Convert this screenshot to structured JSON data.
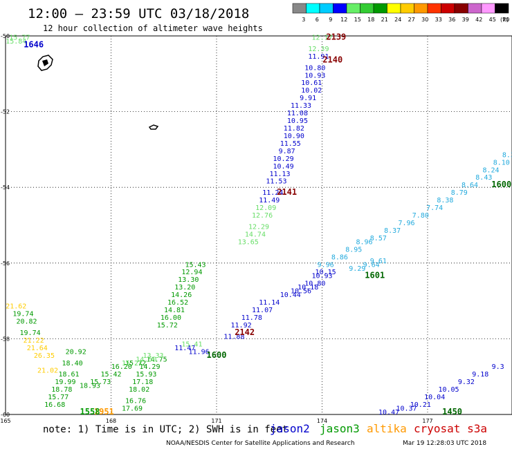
{
  "header": {
    "title": "12:00 – 23:59 UTC 03/18/2018",
    "subtitle": "12 hour collection of altimeter wave heights"
  },
  "colorbar": {
    "labels": [
      "3",
      "6",
      "9",
      "12",
      "15",
      "18",
      "21",
      "24",
      "27",
      "30",
      "33",
      "36",
      "39",
      "42",
      "45",
      "70"
    ],
    "unit": "(ft)",
    "colors": [
      "#888888",
      "#00ffff",
      "#00ccff",
      "#0000ff",
      "#66ee66",
      "#33cc33",
      "#009900",
      "#ffff00",
      "#ffcc00",
      "#ff9900",
      "#ff3300",
      "#cc0000",
      "#880000",
      "#cc66cc",
      "#ff99ff",
      "#000000"
    ]
  },
  "footer": {
    "note": "note: 1) Time is in UTC; 2) SWH is in feet",
    "satellites": [
      {
        "name": "jason2",
        "color": "#0000cc"
      },
      {
        "name": "jason3",
        "color": "#009900"
      },
      {
        "name": "altika",
        "color": "#ff9900"
      },
      {
        "name": "cryosat s3a",
        "color": "#cc0000"
      }
    ],
    "credit": "NOAA/NESDIS Center for Satellite Applications and Research",
    "timestamp": "Mar 19 12:28:03 UTC 2018"
  },
  "chart_data": {
    "type": "scatter",
    "x_unit": "longitude (deg E)",
    "y_unit": "latitude (deg)",
    "xlim": [
      165,
      179.4
    ],
    "ylim": [
      -60,
      -50
    ],
    "x_ticks": [
      {
        "v": 165,
        "label": "165"
      },
      {
        "v": 168,
        "label": "168"
      },
      {
        "v": 171,
        "label": "171"
      },
      {
        "v": 174,
        "label": "174"
      },
      {
        "v": 177,
        "label": "177"
      }
    ],
    "y_ticks": [
      {
        "v": -50,
        "label": "-50"
      },
      {
        "v": -52,
        "label": "-52"
      },
      {
        "v": -54,
        "label": "-54"
      },
      {
        "v": -56,
        "label": "-56"
      },
      {
        "v": -58,
        "label": "-58"
      },
      {
        "v": -60,
        "label": "-60"
      }
    ],
    "grid": true,
    "series": [
      {
        "name": "jason2",
        "color": "#0000cc",
        "points": [
          {
            "x": 173.9,
            "y": -50.6,
            "label": "11.91"
          },
          {
            "x": 173.8,
            "y": -50.9,
            "label": "10.80"
          },
          {
            "x": 173.8,
            "y": -51.1,
            "label": "10.93"
          },
          {
            "x": 173.7,
            "y": -51.3,
            "label": "10.61"
          },
          {
            "x": 173.7,
            "y": -51.5,
            "label": "10.02"
          },
          {
            "x": 173.6,
            "y": -51.7,
            "label": "9.91"
          },
          {
            "x": 173.4,
            "y": -51.9,
            "label": "11.33"
          },
          {
            "x": 173.3,
            "y": -52.1,
            "label": "11.08"
          },
          {
            "x": 173.3,
            "y": -52.3,
            "label": "10.95"
          },
          {
            "x": 173.2,
            "y": -52.5,
            "label": "11.82"
          },
          {
            "x": 173.2,
            "y": -52.7,
            "label": "10.90"
          },
          {
            "x": 173.1,
            "y": -52.9,
            "label": "11.55"
          },
          {
            "x": 173.0,
            "y": -53.1,
            "label": "9.87"
          },
          {
            "x": 172.9,
            "y": -53.3,
            "label": "10.29"
          },
          {
            "x": 172.9,
            "y": -53.5,
            "label": "10.49"
          },
          {
            "x": 172.8,
            "y": -53.7,
            "label": "11.13"
          },
          {
            "x": 172.7,
            "y": -53.9,
            "label": "11.53"
          },
          {
            "x": 172.6,
            "y": -54.2,
            "label": "11.24"
          },
          {
            "x": 172.5,
            "y": -54.4,
            "label": "11.49"
          },
          {
            "x": 174.1,
            "y": -56.3,
            "label": "10.15"
          },
          {
            "x": 174.0,
            "y": -56.4,
            "label": "10.93"
          },
          {
            "x": 173.8,
            "y": -56.6,
            "label": "10.80"
          },
          {
            "x": 173.6,
            "y": -56.7,
            "label": "10.18"
          },
          {
            "x": 173.4,
            "y": -56.8,
            "label": "10.56"
          },
          {
            "x": 173.1,
            "y": -56.9,
            "label": "10.44"
          },
          {
            "x": 172.5,
            "y": -57.1,
            "label": "11.14"
          },
          {
            "x": 172.3,
            "y": -57.3,
            "label": "11.07"
          },
          {
            "x": 172.0,
            "y": -57.5,
            "label": "11.78"
          },
          {
            "x": 171.7,
            "y": -57.7,
            "label": "11.92"
          },
          {
            "x": 171.5,
            "y": -58.0,
            "label": "11.88"
          },
          {
            "x": 170.1,
            "y": -58.3,
            "label": "11.47"
          },
          {
            "x": 170.5,
            "y": -58.4,
            "label": "11.96"
          },
          {
            "x": 179.0,
            "y": -58.8,
            "label": "9.3"
          },
          {
            "x": 178.5,
            "y": -59.0,
            "label": "9.18"
          },
          {
            "x": 178.1,
            "y": -59.2,
            "label": "9.32"
          },
          {
            "x": 177.6,
            "y": -59.4,
            "label": "10.05"
          },
          {
            "x": 177.2,
            "y": -59.6,
            "label": "10.04"
          },
          {
            "x": 176.8,
            "y": -59.8,
            "label": "10.21"
          },
          {
            "x": 176.4,
            "y": -59.9,
            "label": "10.37"
          },
          {
            "x": 175.9,
            "y": -60.0,
            "label": "10.47"
          }
        ]
      },
      {
        "name": "jason2-cyan",
        "color": "#22aadd",
        "points": [
          {
            "x": 179.3,
            "y": -53.2,
            "label": "8.3"
          },
          {
            "x": 179.1,
            "y": -53.4,
            "label": "8.10"
          },
          {
            "x": 178.8,
            "y": -53.6,
            "label": "8.24"
          },
          {
            "x": 178.6,
            "y": -53.8,
            "label": "8.43"
          },
          {
            "x": 178.2,
            "y": -54.0,
            "label": "8.64"
          },
          {
            "x": 177.9,
            "y": -54.2,
            "label": "8.79"
          },
          {
            "x": 177.5,
            "y": -54.4,
            "label": "8.38"
          },
          {
            "x": 177.2,
            "y": -54.6,
            "label": "7.74"
          },
          {
            "x": 176.8,
            "y": -54.8,
            "label": "7.80"
          },
          {
            "x": 176.4,
            "y": -55.0,
            "label": "7.96"
          },
          {
            "x": 176.0,
            "y": -55.2,
            "label": "8.37"
          },
          {
            "x": 175.6,
            "y": -55.4,
            "label": "8.57"
          },
          {
            "x": 175.2,
            "y": -55.5,
            "label": "8.96"
          },
          {
            "x": 174.9,
            "y": -55.7,
            "label": "8.95"
          },
          {
            "x": 174.5,
            "y": -55.9,
            "label": "8.86"
          },
          {
            "x": 174.1,
            "y": -56.1,
            "label": "9.96"
          },
          {
            "x": 175.6,
            "y": -56.0,
            "label": "9.61"
          },
          {
            "x": 175.4,
            "y": -56.1,
            "label": "9.64"
          },
          {
            "x": 175.0,
            "y": -56.2,
            "label": "9.29"
          }
        ]
      },
      {
        "name": "jason3",
        "color": "#009900",
        "points": [
          {
            "x": 170.4,
            "y": -56.1,
            "label": "15.43"
          },
          {
            "x": 170.3,
            "y": -56.3,
            "label": "12.94"
          },
          {
            "x": 170.2,
            "y": -56.5,
            "label": "13.30"
          },
          {
            "x": 170.1,
            "y": -56.7,
            "label": "13.20"
          },
          {
            "x": 170.0,
            "y": -56.9,
            "label": "14.26"
          },
          {
            "x": 169.9,
            "y": -57.1,
            "label": "16.52"
          },
          {
            "x": 169.8,
            "y": -57.3,
            "label": "14.81"
          },
          {
            "x": 169.7,
            "y": -57.5,
            "label": "16.00"
          },
          {
            "x": 169.6,
            "y": -57.7,
            "label": "15.72"
          },
          {
            "x": 169.3,
            "y": -58.6,
            "label": "14.75"
          },
          {
            "x": 169.1,
            "y": -58.8,
            "label": "14.29"
          },
          {
            "x": 169.0,
            "y": -59.0,
            "label": "15.93"
          },
          {
            "x": 168.9,
            "y": -59.2,
            "label": "17.18"
          },
          {
            "x": 168.8,
            "y": -59.4,
            "label": "18.02"
          },
          {
            "x": 168.7,
            "y": -59.7,
            "label": "16.76"
          },
          {
            "x": 168.6,
            "y": -59.9,
            "label": "17.69"
          },
          {
            "x": 167.0,
            "y": -58.4,
            "label": "20.92"
          },
          {
            "x": 166.9,
            "y": -58.7,
            "label": "18.40"
          },
          {
            "x": 166.8,
            "y": -59.0,
            "label": "18.61"
          },
          {
            "x": 166.7,
            "y": -59.2,
            "label": "19.99"
          },
          {
            "x": 166.6,
            "y": -59.4,
            "label": "18.78"
          },
          {
            "x": 166.5,
            "y": -59.6,
            "label": "15.77"
          },
          {
            "x": 166.4,
            "y": -59.8,
            "label": "16.68"
          },
          {
            "x": 165.5,
            "y": -57.4,
            "label": "19.74"
          },
          {
            "x": 165.6,
            "y": -57.6,
            "label": "20.82"
          },
          {
            "x": 165.7,
            "y": -57.9,
            "label": "19.74"
          },
          {
            "x": 167.4,
            "y": -59.3,
            "label": "18.93"
          },
          {
            "x": 167.7,
            "y": -59.2,
            "label": "15.73"
          },
          {
            "x": 168.0,
            "y": -59.0,
            "label": "15.42"
          },
          {
            "x": 168.3,
            "y": -58.8,
            "label": "16.20"
          },
          {
            "x": 168.7,
            "y": -58.7,
            "label": "15.72"
          }
        ]
      },
      {
        "name": "jason3-light",
        "color": "#66dd66",
        "points": [
          {
            "x": 174.0,
            "y": -50.1,
            "label": "12.17"
          },
          {
            "x": 173.9,
            "y": -50.4,
            "label": "12.39"
          },
          {
            "x": 172.4,
            "y": -54.6,
            "label": "12.09"
          },
          {
            "x": 172.3,
            "y": -54.8,
            "label": "12.76"
          },
          {
            "x": 172.2,
            "y": -55.1,
            "label": "12.29"
          },
          {
            "x": 172.1,
            "y": -55.3,
            "label": "14.74"
          },
          {
            "x": 171.9,
            "y": -55.5,
            "label": "13.65"
          },
          {
            "x": 169.2,
            "y": -58.5,
            "label": "13.33"
          },
          {
            "x": 169.0,
            "y": -58.6,
            "label": "14.50"
          },
          {
            "x": 168.6,
            "y": -58.7,
            "label": "15.27"
          },
          {
            "x": 170.3,
            "y": -58.2,
            "label": "15.41"
          },
          {
            "x": 165.4,
            "y": -50.1,
            "label": "15.77"
          },
          {
            "x": 165.3,
            "y": -50.2,
            "label": "15.84"
          }
        ]
      },
      {
        "name": "altika",
        "color": "#ffcc00",
        "points": [
          {
            "x": 165.3,
            "y": -57.2,
            "label": "21.62"
          },
          {
            "x": 165.8,
            "y": -58.1,
            "label": "21.22"
          },
          {
            "x": 165.9,
            "y": -58.3,
            "label": "21.64"
          },
          {
            "x": 166.1,
            "y": -58.5,
            "label": "26.35"
          },
          {
            "x": 166.2,
            "y": -58.9,
            "label": "21.02"
          }
        ]
      }
    ],
    "time_labels": [
      {
        "x": 174.4,
        "y": -50.1,
        "label": "2139",
        "color": "#880000"
      },
      {
        "x": 174.3,
        "y": -50.7,
        "label": "2140",
        "color": "#880000"
      },
      {
        "x": 173.0,
        "y": -54.2,
        "label": "2141",
        "color": "#880000"
      },
      {
        "x": 171.8,
        "y": -57.9,
        "label": "2142",
        "color": "#880000"
      },
      {
        "x": 175.5,
        "y": -56.4,
        "label": "1601",
        "color": "#006600"
      },
      {
        "x": 179.1,
        "y": -54.0,
        "label": "1600",
        "color": "#006600"
      },
      {
        "x": 171.0,
        "y": -58.5,
        "label": "1600",
        "color": "#006600"
      },
      {
        "x": 177.7,
        "y": -60.0,
        "label": "1450",
        "color": "#006600"
      },
      {
        "x": 167.8,
        "y": -60.0,
        "label": "1951",
        "color": "#ff9900"
      },
      {
        "x": 167.4,
        "y": -60.0,
        "label": "1558",
        "color": "#009900"
      },
      {
        "x": 165.8,
        "y": -50.3,
        "label": "1646",
        "color": "#0000cc"
      }
    ]
  }
}
